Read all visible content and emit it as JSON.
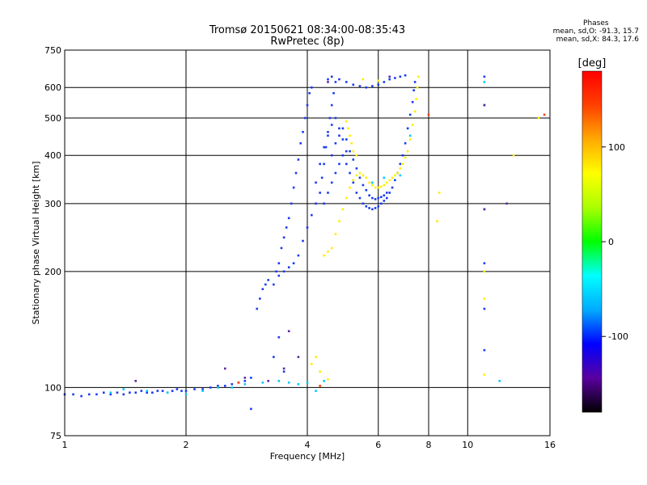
{
  "header": {
    "title": "Tromsø 20150621 08:34:00-08:35:43",
    "subtitle": "RwPretec (8p)"
  },
  "phases_box": {
    "heading": "Phases",
    "line_o": "mean, sd,O:  -91.3, 15.7",
    "line_x": "mean, sd,X:   84.3, 17.6"
  },
  "colorbar": {
    "title": "[deg]",
    "ticks": [
      {
        "value": 100,
        "label": "100"
      },
      {
        "value": 0,
        "label": "0"
      },
      {
        "value": -100,
        "label": "-100"
      }
    ],
    "range": [
      -180,
      180
    ],
    "colors": [
      "#000000",
      "#5a00a0",
      "#0000ff",
      "#00aaff",
      "#00ffff",
      "#00ff00",
      "#aaff00",
      "#ffff00",
      "#ffaa00",
      "#ff4000",
      "#ff0000"
    ]
  },
  "chart_data": {
    "type": "scatter",
    "title": "Tromsø 20150621 08:34:00-08:35:43",
    "subtitle": "RwPretec (8p)",
    "xlabel": "Frequency [MHz]",
    "ylabel": "Stationary phase Virtual Height [km]",
    "xscale": "log",
    "yscale": "log",
    "xlim": [
      1,
      16
    ],
    "ylim": [
      75,
      750
    ],
    "grid": true,
    "xticks": [
      {
        "value": 1,
        "label": "1"
      },
      {
        "value": 2,
        "label": "2"
      },
      {
        "value": 4,
        "label": "4"
      },
      {
        "value": 6,
        "label": "6"
      },
      {
        "value": 8,
        "label": "8"
      },
      {
        "value": 10,
        "label": "10"
      },
      {
        "value": 16,
        "label": "16"
      }
    ],
    "yticks": [
      {
        "value": 75,
        "label": "75"
      },
      {
        "value": 100,
        "label": "100"
      },
      {
        "value": 200,
        "label": "200"
      },
      {
        "value": 300,
        "label": "300"
      },
      {
        "value": 400,
        "label": "400"
      },
      {
        "value": 500,
        "label": "500"
      },
      {
        "value": 600,
        "label": "600"
      },
      {
        "value": 750,
        "label": "750"
      }
    ],
    "series": [
      {
        "color": "#1a3cf0",
        "points": [
          [
            1.0,
            96
          ],
          [
            1.05,
            96
          ],
          [
            1.1,
            95
          ],
          [
            1.15,
            96
          ],
          [
            1.2,
            96
          ],
          [
            1.25,
            97
          ],
          [
            1.3,
            96
          ],
          [
            1.35,
            97
          ],
          [
            1.4,
            96
          ],
          [
            1.45,
            97
          ],
          [
            1.5,
            97
          ],
          [
            1.55,
            98
          ],
          [
            1.6,
            97
          ],
          [
            1.65,
            97
          ],
          [
            1.7,
            98
          ],
          [
            1.75,
            98
          ],
          [
            1.8,
            97
          ],
          [
            1.85,
            98
          ],
          [
            1.9,
            99
          ],
          [
            1.95,
            98
          ],
          [
            2.0,
            98
          ],
          [
            2.1,
            99
          ],
          [
            2.2,
            99
          ],
          [
            2.3,
            100
          ],
          [
            2.4,
            101
          ],
          [
            2.5,
            101
          ],
          [
            2.6,
            102
          ],
          [
            2.7,
            103
          ],
          [
            2.8,
            104
          ],
          [
            2.9,
            106
          ],
          [
            3.0,
            160
          ],
          [
            3.05,
            170
          ],
          [
            3.1,
            180
          ],
          [
            3.15,
            185
          ],
          [
            3.2,
            190
          ],
          [
            3.3,
            185
          ],
          [
            3.35,
            200
          ],
          [
            3.4,
            210
          ],
          [
            3.45,
            230
          ],
          [
            3.5,
            245
          ],
          [
            3.55,
            260
          ],
          [
            3.6,
            275
          ],
          [
            3.65,
            300
          ],
          [
            3.7,
            330
          ],
          [
            3.75,
            360
          ],
          [
            3.8,
            390
          ],
          [
            3.85,
            430
          ],
          [
            3.9,
            460
          ],
          [
            3.95,
            500
          ],
          [
            4.0,
            540
          ],
          [
            4.05,
            580
          ],
          [
            4.1,
            600
          ],
          [
            3.4,
            195
          ],
          [
            3.5,
            200
          ],
          [
            3.6,
            205
          ],
          [
            3.7,
            210
          ],
          [
            3.8,
            220
          ],
          [
            3.9,
            240
          ],
          [
            4.0,
            260
          ],
          [
            4.1,
            280
          ],
          [
            4.2,
            300
          ],
          [
            4.3,
            320
          ],
          [
            4.35,
            350
          ],
          [
            4.4,
            380
          ],
          [
            4.45,
            420
          ],
          [
            4.5,
            460
          ],
          [
            4.55,
            500
          ],
          [
            4.6,
            540
          ],
          [
            4.65,
            580
          ],
          [
            4.7,
            620
          ],
          [
            4.4,
            300
          ],
          [
            4.5,
            320
          ],
          [
            4.6,
            340
          ],
          [
            4.7,
            360
          ],
          [
            4.8,
            380
          ],
          [
            4.9,
            400
          ],
          [
            5.0,
            380
          ],
          [
            5.1,
            360
          ],
          [
            5.2,
            340
          ],
          [
            5.3,
            320
          ],
          [
            5.4,
            310
          ],
          [
            5.5,
            300
          ],
          [
            5.6,
            295
          ],
          [
            5.7,
            292
          ],
          [
            5.8,
            290
          ],
          [
            5.9,
            292
          ],
          [
            6.0,
            295
          ],
          [
            6.1,
            300
          ],
          [
            6.2,
            305
          ],
          [
            6.3,
            310
          ],
          [
            6.4,
            320
          ],
          [
            6.5,
            330
          ],
          [
            6.6,
            345
          ],
          [
            6.7,
            360
          ],
          [
            6.8,
            380
          ],
          [
            6.9,
            400
          ],
          [
            7.0,
            430
          ],
          [
            7.1,
            470
          ],
          [
            7.2,
            510
          ],
          [
            7.3,
            550
          ],
          [
            7.35,
            590
          ],
          [
            7.4,
            620
          ],
          [
            4.6,
            400
          ],
          [
            4.7,
            430
          ],
          [
            4.8,
            450
          ],
          [
            4.9,
            470
          ],
          [
            5.0,
            440
          ],
          [
            5.1,
            410
          ],
          [
            5.2,
            390
          ],
          [
            5.3,
            370
          ],
          [
            5.4,
            350
          ],
          [
            5.5,
            335
          ],
          [
            5.6,
            325
          ],
          [
            5.7,
            315
          ],
          [
            5.8,
            310
          ],
          [
            5.9,
            308
          ],
          [
            6.0,
            310
          ],
          [
            6.1,
            312
          ],
          [
            6.2,
            315
          ],
          [
            6.3,
            320
          ],
          [
            4.5,
            630
          ],
          [
            4.6,
            640
          ],
          [
            4.8,
            630
          ],
          [
            5.0,
            620
          ],
          [
            5.2,
            610
          ],
          [
            5.4,
            605
          ],
          [
            5.6,
            600
          ],
          [
            5.8,
            605
          ],
          [
            6.0,
            610
          ],
          [
            6.2,
            620
          ],
          [
            6.4,
            630
          ],
          [
            6.6,
            635
          ],
          [
            6.8,
            640
          ],
          [
            7.0,
            645
          ],
          [
            4.2,
            340
          ],
          [
            4.3,
            380
          ],
          [
            4.4,
            420
          ],
          [
            4.5,
            450
          ],
          [
            4.6,
            480
          ],
          [
            4.7,
            500
          ],
          [
            4.8,
            470
          ],
          [
            4.9,
            440
          ],
          [
            5.0,
            410
          ],
          [
            11,
            640
          ],
          [
            11,
            540
          ],
          [
            11,
            290
          ],
          [
            11,
            210
          ],
          [
            11,
            160
          ],
          [
            11,
            125
          ],
          [
            3.3,
            120
          ],
          [
            3.4,
            135
          ],
          [
            3.5,
            110
          ],
          [
            2.9,
            88
          ]
        ]
      },
      {
        "color": "#ffee00",
        "points": [
          [
            4.2,
            120
          ],
          [
            4.1,
            115
          ],
          [
            4.3,
            110
          ],
          [
            4.5,
            105
          ],
          [
            4.4,
            220
          ],
          [
            4.5,
            225
          ],
          [
            4.6,
            230
          ],
          [
            4.7,
            250
          ],
          [
            4.8,
            270
          ],
          [
            4.9,
            290
          ],
          [
            5.0,
            310
          ],
          [
            5.1,
            330
          ],
          [
            5.2,
            345
          ],
          [
            5.3,
            355
          ],
          [
            5.4,
            360
          ],
          [
            5.5,
            355
          ],
          [
            5.6,
            350
          ],
          [
            5.7,
            340
          ],
          [
            5.8,
            335
          ],
          [
            5.9,
            330
          ],
          [
            6.0,
            330
          ],
          [
            6.1,
            332
          ],
          [
            6.2,
            335
          ],
          [
            6.3,
            340
          ],
          [
            6.4,
            345
          ],
          [
            6.5,
            350
          ],
          [
            6.6,
            355
          ],
          [
            6.7,
            360
          ],
          [
            6.8,
            370
          ],
          [
            6.9,
            380
          ],
          [
            7.0,
            395
          ],
          [
            7.1,
            410
          ],
          [
            7.2,
            440
          ],
          [
            7.3,
            480
          ],
          [
            7.4,
            520
          ],
          [
            7.45,
            560
          ],
          [
            7.5,
            600
          ],
          [
            7.55,
            640
          ],
          [
            5.0,
            490
          ],
          [
            5.05,
            470
          ],
          [
            5.1,
            450
          ],
          [
            5.15,
            430
          ],
          [
            5.2,
            410
          ],
          [
            5.3,
            400
          ],
          [
            8.5,
            320
          ],
          [
            8.4,
            270
          ],
          [
            11,
            200
          ],
          [
            11,
            170
          ],
          [
            11,
            108
          ],
          [
            13,
            400
          ],
          [
            15,
            500
          ],
          [
            5.5,
            630
          ],
          [
            6.0,
            625
          ]
        ]
      },
      {
        "color": "#00c8ff",
        "points": [
          [
            1.3,
            97
          ],
          [
            1.4,
            99
          ],
          [
            1.6,
            98
          ],
          [
            1.8,
            97
          ],
          [
            2.0,
            96
          ],
          [
            2.2,
            98
          ],
          [
            2.4,
            100
          ],
          [
            2.6,
            100
          ],
          [
            2.8,
            102
          ],
          [
            3.1,
            103
          ],
          [
            3.4,
            104
          ],
          [
            3.6,
            103
          ],
          [
            3.8,
            102
          ],
          [
            4.0,
            103
          ],
          [
            4.2,
            98
          ],
          [
            4.4,
            104
          ],
          [
            5.8,
            340
          ],
          [
            6.2,
            350
          ],
          [
            6.8,
            355
          ],
          [
            7.2,
            450
          ],
          [
            11,
            620
          ],
          [
            12,
            104
          ]
        ]
      },
      {
        "color": "#5a2aa0",
        "points": [
          [
            1.5,
            104
          ],
          [
            2.5,
            112
          ],
          [
            2.8,
            106
          ],
          [
            3.2,
            104
          ],
          [
            3.5,
            112
          ],
          [
            3.6,
            140
          ],
          [
            3.8,
            120
          ],
          [
            4.5,
            620
          ],
          [
            6.4,
            640
          ],
          [
            11,
            290
          ],
          [
            11,
            540
          ],
          [
            12.5,
            300
          ]
        ]
      },
      {
        "color": "#ff4000",
        "points": [
          [
            2.7,
            103
          ],
          [
            4.3,
            101
          ],
          [
            8.0,
            510
          ],
          [
            15.5,
            510
          ]
        ]
      }
    ]
  }
}
